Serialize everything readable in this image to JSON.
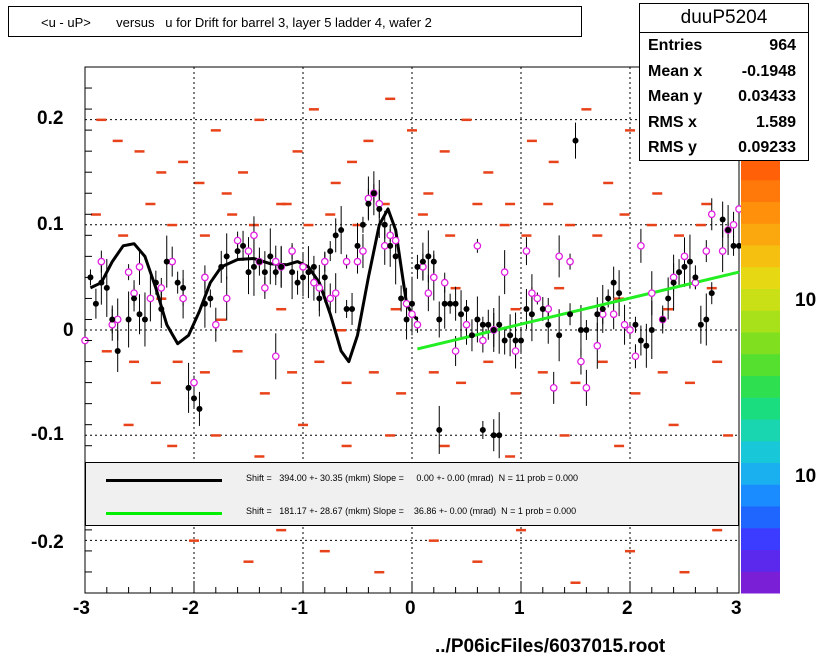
{
  "title": "<u - uP>       versus   u for Drift for barrel 3, layer 5 ladder 4, wafer 2",
  "stats": {
    "name": "duuP5204",
    "rows": [
      {
        "label": "Entries",
        "value": "964"
      },
      {
        "label": "Mean x",
        "value": "-0.1948"
      },
      {
        "label": "Mean y",
        "value": "0.03433"
      },
      {
        "label": "RMS x",
        "value": "1.589"
      },
      {
        "label": "RMS y",
        "value": "0.09233"
      }
    ]
  },
  "legend": [
    {
      "color": "#000000",
      "text": "Shift =   394.00 +- 30.35 (mkm) Slope =     0.00 +- 0.00 (mrad)  N = 11 prob = 0.000"
    },
    {
      "color": "#00ee00",
      "text": "Shift =   181.17 +- 28.67 (mkm) Slope =    36.86 +- 0.00 (mrad)  N = 1 prob = 0.000"
    }
  ],
  "footer": "../P06icFiles/6037015.root",
  "colorbar_labels": [
    "10",
    "10"
  ],
  "chart_data": {
    "type": "scatter",
    "xlim": [
      -3,
      3
    ],
    "ylim": [
      -0.25,
      0.25
    ],
    "x_ticks": [
      "-3",
      "-2",
      "-1",
      "0",
      "1",
      "2",
      "3"
    ],
    "y_ticks": [
      "0.2",
      "0.1",
      "0",
      "-0.1",
      "-0.2"
    ],
    "grid": true,
    "profile_black": [
      [
        -2.95,
        0.05
      ],
      [
        -2.9,
        0.025
      ],
      [
        -2.85,
        0.045
      ],
      [
        -2.8,
        0.04
      ],
      [
        -2.75,
        0.01
      ],
      [
        -2.7,
        -0.02
      ],
      [
        -2.6,
        0.01
      ],
      [
        -2.55,
        0.03
      ],
      [
        -2.5,
        0.015
      ],
      [
        -2.45,
        0.01
      ],
      [
        -2.35,
        0.045
      ],
      [
        -2.3,
        0.02
      ],
      [
        -2.25,
        0.065
      ],
      [
        -2.15,
        0.045
      ],
      [
        -2.1,
        0.04
      ],
      [
        -2.05,
        -0.055
      ],
      [
        -2.0,
        -0.065
      ],
      [
        -1.95,
        -0.075
      ],
      [
        -1.9,
        0.025
      ],
      [
        -1.85,
        0.03
      ],
      [
        -1.75,
        0.06
      ],
      [
        -1.7,
        0.07
      ],
      [
        -1.6,
        0.075
      ],
      [
        -1.55,
        0.08
      ],
      [
        -1.5,
        0.055
      ],
      [
        -1.45,
        0.06
      ],
      [
        -1.4,
        0.065
      ],
      [
        -1.35,
        0.055
      ],
      [
        -1.3,
        0.07
      ],
      [
        -1.25,
        0.055
      ],
      [
        -1.2,
        0.06
      ],
      [
        -1.1,
        0.055
      ],
      [
        -1.05,
        0.045
      ],
      [
        -1.0,
        0.05
      ],
      [
        -0.95,
        0.055
      ],
      [
        -0.9,
        0.06
      ],
      [
        -0.85,
        0.03
      ],
      [
        -0.8,
        0.05
      ],
      [
        -0.75,
        0.075
      ],
      [
        -0.7,
        0.09
      ],
      [
        -0.65,
        0.095
      ],
      [
        -0.6,
        0.02
      ],
      [
        -0.55,
        0.02
      ],
      [
        -0.5,
        0.08
      ],
      [
        -0.45,
        0.1
      ],
      [
        -0.4,
        0.12
      ],
      [
        -0.35,
        0.13
      ],
      [
        -0.3,
        0.115
      ],
      [
        -0.25,
        0.1
      ],
      [
        -0.2,
        0.08
      ],
      [
        -0.15,
        0.07
      ],
      [
        -0.1,
        0.03
      ],
      [
        -0.05,
        0.01
      ],
      [
        0.0,
        0.025
      ],
      [
        0.05,
        0.06
      ],
      [
        0.1,
        0.065
      ],
      [
        0.15,
        0.07
      ],
      [
        0.2,
        0.065
      ],
      [
        0.25,
        0.01
      ],
      [
        0.3,
        0.025
      ],
      [
        0.35,
        0.025
      ],
      [
        0.4,
        0.025
      ],
      [
        0.45,
        0.015
      ],
      [
        0.5,
        0.02
      ],
      [
        0.55,
        -0.005
      ],
      [
        0.6,
        0.01
      ],
      [
        0.65,
        0.005
      ],
      [
        0.7,
        0.005
      ],
      [
        0.75,
        0.0
      ],
      [
        0.8,
        0.005
      ],
      [
        0.85,
        -0.01
      ],
      [
        0.9,
        -0.005
      ],
      [
        0.95,
        -0.01
      ],
      [
        1.0,
        -0.01
      ],
      [
        1.05,
        0.02
      ],
      [
        1.1,
        0.015
      ],
      [
        1.2,
        0.02
      ],
      [
        1.25,
        0.005
      ],
      [
        1.35,
        -0.005
      ],
      [
        1.45,
        0.015
      ],
      [
        1.5,
        0.18
      ],
      [
        1.55,
        0.0
      ],
      [
        1.6,
        0.0
      ],
      [
        1.7,
        0.015
      ],
      [
        1.75,
        0.02
      ],
      [
        1.8,
        0.03
      ],
      [
        1.85,
        0.045
      ],
      [
        1.9,
        0.035
      ],
      [
        2.05,
        0.005
      ],
      [
        2.1,
        -0.01
      ],
      [
        2.15,
        -0.015
      ],
      [
        2.2,
        0.0
      ],
      [
        2.3,
        0.01
      ],
      [
        2.35,
        0.03
      ],
      [
        2.4,
        0.045
      ],
      [
        2.45,
        0.055
      ],
      [
        2.5,
        0.06
      ],
      [
        2.55,
        0.065
      ],
      [
        2.6,
        0.05
      ],
      [
        2.65,
        0.005
      ],
      [
        2.7,
        0.01
      ],
      [
        2.75,
        0.035
      ],
      [
        2.85,
        0.105
      ],
      [
        2.9,
        0.095
      ],
      [
        2.95,
        0.08
      ],
      [
        3.0,
        0.08
      ],
      [
        0.25,
        -0.095
      ],
      [
        0.65,
        -0.095
      ],
      [
        0.75,
        -0.1
      ],
      [
        0.8,
        -0.1
      ]
    ],
    "profile_open": [
      [
        -3.0,
        -0.01
      ],
      [
        -2.85,
        0.065
      ],
      [
        -2.75,
        0.005
      ],
      [
        -2.7,
        0.01
      ],
      [
        -2.6,
        0.055
      ],
      [
        -2.55,
        0.035
      ],
      [
        -2.5,
        0.06
      ],
      [
        -2.4,
        0.03
      ],
      [
        -2.3,
        0.04
      ],
      [
        -2.2,
        0.065
      ],
      [
        -2.1,
        0.03
      ],
      [
        -2.0,
        -0.05
      ],
      [
        -1.9,
        0.05
      ],
      [
        -1.8,
        0.005
      ],
      [
        -1.7,
        0.03
      ],
      [
        -1.6,
        0.085
      ],
      [
        -1.5,
        0.075
      ],
      [
        -1.45,
        0.09
      ],
      [
        -1.4,
        0.065
      ],
      [
        -1.35,
        0.04
      ],
      [
        -1.25,
        0.065
      ],
      [
        -1.2,
        0.06
      ],
      [
        -1.1,
        0.075
      ],
      [
        -1.0,
        0.06
      ],
      [
        -0.9,
        0.045
      ],
      [
        -0.85,
        0.04
      ],
      [
        -0.8,
        0.065
      ],
      [
        -0.75,
        0.03
      ],
      [
        -0.7,
        0.035
      ],
      [
        -0.6,
        0.065
      ],
      [
        -0.5,
        0.065
      ],
      [
        -0.45,
        0.075
      ],
      [
        -0.4,
        0.125
      ],
      [
        -0.35,
        0.13
      ],
      [
        -0.3,
        0.12
      ],
      [
        -0.25,
        0.08
      ],
      [
        -0.2,
        0.09
      ],
      [
        -0.15,
        0.085
      ],
      [
        -0.05,
        0.025
      ],
      [
        0.0,
        0.015
      ],
      [
        0.05,
        0.005
      ],
      [
        0.1,
        0.06
      ],
      [
        0.15,
        0.035
      ],
      [
        0.2,
        0.05
      ],
      [
        0.3,
        0.045
      ],
      [
        0.4,
        -0.02
      ],
      [
        0.5,
        0.005
      ],
      [
        0.6,
        0.08
      ],
      [
        0.65,
        -0.01
      ],
      [
        0.75,
        0.0
      ],
      [
        0.85,
        0.055
      ],
      [
        0.95,
        -0.02
      ],
      [
        1.05,
        0.075
      ],
      [
        1.1,
        0.035
      ],
      [
        1.15,
        0.03
      ],
      [
        1.25,
        0.02
      ],
      [
        1.3,
        -0.055
      ],
      [
        1.35,
        0.07
      ],
      [
        1.45,
        0.065
      ],
      [
        1.55,
        -0.03
      ],
      [
        1.6,
        -0.055
      ],
      [
        1.7,
        -0.015
      ],
      [
        1.75,
        0.015
      ],
      [
        1.85,
        0.015
      ],
      [
        1.95,
        0.005
      ],
      [
        2.0,
        0.0
      ],
      [
        2.05,
        -0.025
      ],
      [
        2.1,
        0.08
      ],
      [
        2.2,
        0.035
      ],
      [
        2.3,
        0.01
      ],
      [
        2.4,
        0.05
      ],
      [
        2.5,
        0.07
      ],
      [
        2.6,
        0.045
      ],
      [
        2.7,
        0.075
      ],
      [
        2.75,
        0.11
      ],
      [
        2.85,
        0.075
      ],
      [
        2.9,
        0.095
      ],
      [
        2.95,
        0.1
      ],
      [
        3.0,
        0.115
      ],
      [
        -1.25,
        -0.025
      ]
    ],
    "fit_black": [
      [
        -2.95,
        0.04
      ],
      [
        -2.85,
        0.045
      ],
      [
        -2.75,
        0.065
      ],
      [
        -2.65,
        0.08
      ],
      [
        -2.55,
        0.082
      ],
      [
        -2.45,
        0.07
      ],
      [
        -2.35,
        0.04
      ],
      [
        -2.25,
        0.005
      ],
      [
        -2.15,
        -0.013
      ],
      [
        -2.05,
        -0.005
      ],
      [
        -1.95,
        0.018
      ],
      [
        -1.85,
        0.045
      ],
      [
        -1.75,
        0.06
      ],
      [
        -1.6,
        0.067
      ],
      [
        -1.45,
        0.068
      ],
      [
        -1.3,
        0.063
      ],
      [
        -1.15,
        0.062
      ],
      [
        -1.05,
        0.065
      ],
      [
        -0.95,
        0.06
      ],
      [
        -0.85,
        0.045
      ],
      [
        -0.75,
        0.015
      ],
      [
        -0.65,
        -0.02
      ],
      [
        -0.58,
        -0.03
      ],
      [
        -0.5,
        -0.005
      ],
      [
        -0.4,
        0.05
      ],
      [
        -0.3,
        0.1
      ],
      [
        -0.22,
        0.115
      ],
      [
        -0.15,
        0.095
      ],
      [
        -0.1,
        0.06
      ],
      [
        -0.05,
        0.025
      ],
      [
        0.0,
        0.015
      ],
      [
        0.05,
        0.01
      ]
    ],
    "fit_green": [
      [
        0.05,
        -0.018
      ],
      [
        3.0,
        0.055
      ]
    ],
    "scatter_dashes_red": [
      [
        -2.85,
        0.2
      ],
      [
        -2.7,
        0.18
      ],
      [
        -2.5,
        0.17
      ],
      [
        -2.3,
        0.15
      ],
      [
        -2.1,
        0.16
      ],
      [
        -1.95,
        0.14
      ],
      [
        -1.8,
        0.19
      ],
      [
        -1.7,
        0.13
      ],
      [
        -1.55,
        0.15
      ],
      [
        -1.4,
        0.2
      ],
      [
        -1.2,
        0.12
      ],
      [
        -1.05,
        0.17
      ],
      [
        -0.9,
        0.21
      ],
      [
        -0.7,
        0.14
      ],
      [
        -0.55,
        0.16
      ],
      [
        -0.4,
        0.18
      ],
      [
        -0.2,
        0.22
      ],
      [
        0.0,
        0.19
      ],
      [
        0.15,
        0.13
      ],
      [
        0.3,
        0.17
      ],
      [
        0.5,
        0.2
      ],
      [
        0.7,
        0.15
      ],
      [
        0.9,
        0.12
      ],
      [
        1.1,
        0.18
      ],
      [
        1.3,
        0.16
      ],
      [
        1.6,
        0.21
      ],
      [
        1.8,
        0.14
      ],
      [
        2.0,
        0.19
      ],
      [
        2.25,
        0.13
      ],
      [
        2.5,
        0.17
      ],
      [
        2.7,
        0.12
      ],
      [
        2.85,
        0.22
      ],
      [
        -2.9,
        0.11
      ],
      [
        -2.65,
        0.09
      ],
      [
        -2.4,
        0.12
      ],
      [
        -2.2,
        0.1
      ],
      [
        -1.9,
        0.09
      ],
      [
        -1.65,
        0.11
      ],
      [
        -1.45,
        0.1
      ],
      [
        -1.15,
        0.12
      ],
      [
        -0.95,
        0.1
      ],
      [
        -0.75,
        0.11
      ],
      [
        -0.5,
        0.1
      ],
      [
        -0.25,
        0.12
      ],
      [
        0.1,
        0.11
      ],
      [
        0.35,
        0.09
      ],
      [
        0.6,
        0.12
      ],
      [
        0.85,
        0.1
      ],
      [
        1.05,
        0.09
      ],
      [
        1.25,
        0.12
      ],
      [
        1.45,
        0.1
      ],
      [
        1.7,
        0.09
      ],
      [
        1.95,
        0.11
      ],
      [
        2.2,
        0.1
      ],
      [
        2.45,
        0.09
      ],
      [
        2.65,
        0.1
      ],
      [
        -2.8,
        -0.02
      ],
      [
        -2.55,
        -0.03
      ],
      [
        -2.35,
        -0.05
      ],
      [
        -2.15,
        -0.03
      ],
      [
        -1.9,
        -0.04
      ],
      [
        -1.6,
        -0.02
      ],
      [
        -1.35,
        -0.06
      ],
      [
        -1.1,
        -0.04
      ],
      [
        -0.85,
        -0.03
      ],
      [
        -0.6,
        -0.05
      ],
      [
        -0.35,
        -0.04
      ],
      [
        -0.1,
        -0.06
      ],
      [
        0.2,
        -0.04
      ],
      [
        0.45,
        -0.05
      ],
      [
        0.7,
        -0.03
      ],
      [
        0.95,
        -0.06
      ],
      [
        1.2,
        -0.04
      ],
      [
        1.5,
        -0.05
      ],
      [
        1.75,
        -0.03
      ],
      [
        2.05,
        -0.06
      ],
      [
        2.3,
        -0.04
      ],
      [
        2.55,
        -0.05
      ],
      [
        2.8,
        -0.03
      ],
      [
        -2.6,
        -0.09
      ],
      [
        -2.2,
        -0.11
      ],
      [
        -1.8,
        -0.1
      ],
      [
        -1.4,
        -0.12
      ],
      [
        -1.0,
        -0.09
      ],
      [
        -0.6,
        -0.11
      ],
      [
        -0.2,
        -0.1
      ],
      [
        0.3,
        -0.11
      ],
      [
        0.9,
        -0.12
      ],
      [
        1.4,
        -0.1
      ],
      [
        1.9,
        -0.11
      ],
      [
        2.4,
        -0.09
      ],
      [
        2.9,
        -0.1
      ],
      [
        -2.0,
        -0.2
      ],
      [
        -1.5,
        -0.22
      ],
      [
        -1.2,
        -0.19
      ],
      [
        -0.8,
        -0.21
      ],
      [
        -0.3,
        -0.23
      ],
      [
        0.2,
        -0.2
      ],
      [
        0.6,
        -0.22
      ],
      [
        1.0,
        -0.19
      ],
      [
        1.5,
        -0.24
      ],
      [
        2.0,
        -0.21
      ],
      [
        2.5,
        -0.23
      ],
      [
        2.8,
        -0.19
      ],
      [
        -2.3,
        0.03
      ],
      [
        -1.75,
        0.01
      ],
      [
        -1.2,
        0.02
      ],
      [
        -0.65,
        0.0
      ],
      [
        -0.15,
        0.02
      ],
      [
        0.4,
        0.04
      ],
      [
        0.95,
        0.02
      ],
      [
        1.35,
        0.04
      ],
      [
        1.9,
        0.03
      ],
      [
        2.35,
        0.02
      ],
      [
        2.75,
        0.04
      ]
    ]
  }
}
